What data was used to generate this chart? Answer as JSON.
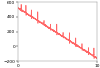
{
  "line_color": "#ff6666",
  "background_color": "#ffffff",
  "ylim": [
    -200,
    600
  ],
  "xlim": [
    0,
    10
  ],
  "yticks": [
    600,
    400,
    200,
    0,
    -200
  ],
  "xticks": [
    0,
    10
  ],
  "figsize": [
    1.0,
    0.68
  ],
  "dpi": 100,
  "linewidth": 0.5
}
